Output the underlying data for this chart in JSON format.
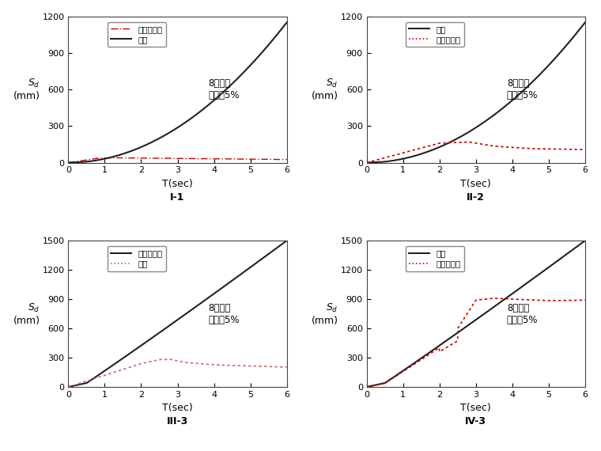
{
  "panels": [
    {
      "title": "I-1",
      "ylim": [
        0,
        1200
      ],
      "yticks": [
        0,
        300,
        600,
        900,
        1200
      ],
      "legend": [
        {
          "label": "位移谱均值",
          "color": "#cc0000",
          "ls": "dashdot",
          "lw": 1.0
        },
        {
          "label": "转换",
          "color": "#222222",
          "ls": "solid",
          "lw": 1.5
        }
      ],
      "annotation": "8度罕遇\n阻尼比5%",
      "ann_x": 3.85,
      "ann_y": 600
    },
    {
      "title": "II-2",
      "ylim": [
        0,
        1200
      ],
      "yticks": [
        0,
        300,
        600,
        900,
        1200
      ],
      "legend": [
        {
          "label": "转换",
          "color": "#222222",
          "ls": "solid",
          "lw": 1.5
        },
        {
          "label": "位移谱均值",
          "color": "#cc0000",
          "ls": "dotted",
          "lw": 1.2
        }
      ],
      "annotation": "8度罕遇\n阻尼比5%",
      "ann_x": 3.85,
      "ann_y": 600
    },
    {
      "title": "III-3",
      "ylim": [
        0,
        1500
      ],
      "yticks": [
        0,
        300,
        600,
        900,
        1200,
        1500
      ],
      "legend": [
        {
          "label": "位移谱均值",
          "color": "#222222",
          "ls": "solid",
          "lw": 1.5
        },
        {
          "label": "转换",
          "color": "#cc6666",
          "ls": "dotted",
          "lw": 1.2
        }
      ],
      "annotation": "8度罕遇\n阻尼比5%",
      "ann_x": 3.85,
      "ann_y": 750
    },
    {
      "title": "IV-3",
      "ylim": [
        0,
        1500
      ],
      "yticks": [
        0,
        300,
        600,
        900,
        1200,
        1500
      ],
      "legend": [
        {
          "label": "转换",
          "color": "#222222",
          "ls": "solid",
          "lw": 1.5
        },
        {
          "label": "位移谱均值",
          "color": "#cc0000",
          "ls": "dotted",
          "lw": 1.2
        }
      ],
      "annotation": "8度罕遇\n阻尼比5%",
      "ann_x": 3.85,
      "ann_y": 750
    }
  ],
  "xlim": [
    0,
    6
  ],
  "xticks": [
    0,
    1,
    2,
    3,
    4,
    5,
    6
  ],
  "bg_color": "#ffffff",
  "fig_bg": "#ffffff"
}
